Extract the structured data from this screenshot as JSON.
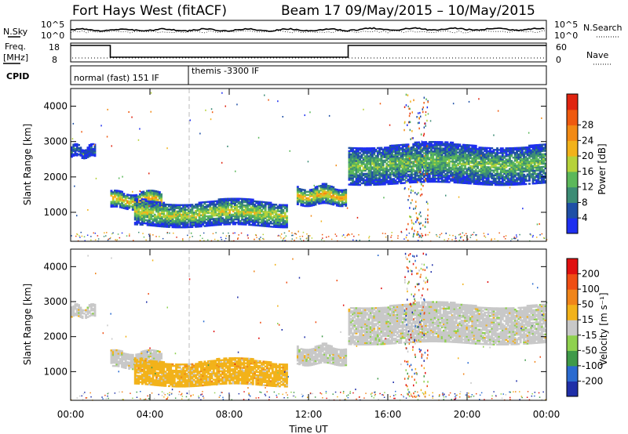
{
  "header": {
    "station": "Fort Hays West (fitACF)",
    "beam_date": "Beam 17  09/May/2015 – 10/May/2015"
  },
  "top_panels": {
    "nsky_label": "N.Sky",
    "nsky_scale_top": "10^5",
    "nsky_scale_bottom": "10^0",
    "nsearch_label": "N.Search",
    "nsearch_scale_top": "10^5",
    "nsearch_scale_bottom": "10^0",
    "freq_label": "Freq.",
    "freq_unit": "[MHz]",
    "freq_ticks": [
      "18",
      "8"
    ],
    "nave_label": "Nave",
    "nave_ticks": [
      "60",
      "0"
    ],
    "cpid_label": "CPID",
    "cpid_modes": [
      {
        "name": "normal (fast) 151 IF",
        "start_hour": 0,
        "end_hour": 6
      },
      {
        "name": "themis -3300 IF",
        "start_hour": 6,
        "end_hour": 24
      }
    ]
  },
  "chart_data": [
    {
      "type": "heatmap",
      "title": "",
      "xlabel": "",
      "ylabel": "Slant Range [km]",
      "x_unit": "hours UT",
      "xlim": [
        0,
        24
      ],
      "ylim": [
        180,
        4500
      ],
      "x_ticks": [
        "00:00",
        "04:00",
        "08:00",
        "12:00",
        "16:00",
        "20:00",
        "00:00"
      ],
      "y_ticks": [
        "1000",
        "2000",
        "3000",
        "4000"
      ],
      "colorbar_label": "Power [dB]",
      "colorbar_ticks": [
        "4",
        "8",
        "12",
        "16",
        "20",
        "24",
        "28"
      ],
      "colorbar_colors": [
        "#1e2ff0",
        "#1f4fa6",
        "#3c8c75",
        "#5cb85a",
        "#b6d23a",
        "#f2b21a",
        "#f28a14",
        "#ef5a0f",
        "#e02410"
      ],
      "dashed_marker_hour": 6,
      "regions": [
        {
          "start_hour": 0.0,
          "end_hour": 1.2,
          "range_low": 2550,
          "range_high": 2850,
          "level": 1
        },
        {
          "start_hour": 2.0,
          "end_hour": 4.6,
          "range_low": 1100,
          "range_high": 1550,
          "level": 5
        },
        {
          "start_hour": 3.2,
          "end_hour": 10.9,
          "range_low": 600,
          "range_high": 1300,
          "level": 4
        },
        {
          "start_hour": 11.4,
          "end_hour": 13.9,
          "range_low": 1200,
          "range_high": 1700,
          "level": 5
        },
        {
          "start_hour": 14.0,
          "end_hour": 23.9,
          "range_low": 1800,
          "range_high": 2900,
          "level": 3
        }
      ]
    },
    {
      "type": "heatmap",
      "title": "",
      "xlabel": "Time UT",
      "ylabel": "Slant Range [km]",
      "x_unit": "hours UT",
      "xlim": [
        0,
        24
      ],
      "ylim": [
        180,
        4500
      ],
      "x_ticks": [
        "00:00",
        "04:00",
        "08:00",
        "12:00",
        "16:00",
        "20:00",
        "00:00"
      ],
      "y_ticks": [
        "1000",
        "2000",
        "3000",
        "4000"
      ],
      "colorbar_label": "Velocity [m s⁻¹]",
      "colorbar_ticks": [
        "200",
        "100",
        "50",
        "15",
        "-15",
        "-50",
        "-100",
        "-200"
      ],
      "colorbar_colors": [
        "#1f2fa8",
        "#2b6bd0",
        "#3f9a49",
        "#8fd14f",
        "#c8c8c8",
        "#f2b21a",
        "#f0851a",
        "#ef4e14",
        "#e01010"
      ],
      "regions": [
        {
          "start_hour": 0.0,
          "end_hour": 1.2,
          "range_low": 2550,
          "range_high": 2850,
          "level": 4
        },
        {
          "start_hour": 2.0,
          "end_hour": 4.6,
          "range_low": 1100,
          "range_high": 1550,
          "level": 4
        },
        {
          "start_hour": 3.2,
          "end_hour": 10.9,
          "range_low": 600,
          "range_high": 1300,
          "level": 5
        },
        {
          "start_hour": 11.4,
          "end_hour": 13.9,
          "range_low": 1200,
          "range_high": 1700,
          "level": 4
        },
        {
          "start_hour": 14.0,
          "end_hour": 23.9,
          "range_low": 1800,
          "range_high": 2900,
          "level": 4
        }
      ]
    }
  ]
}
